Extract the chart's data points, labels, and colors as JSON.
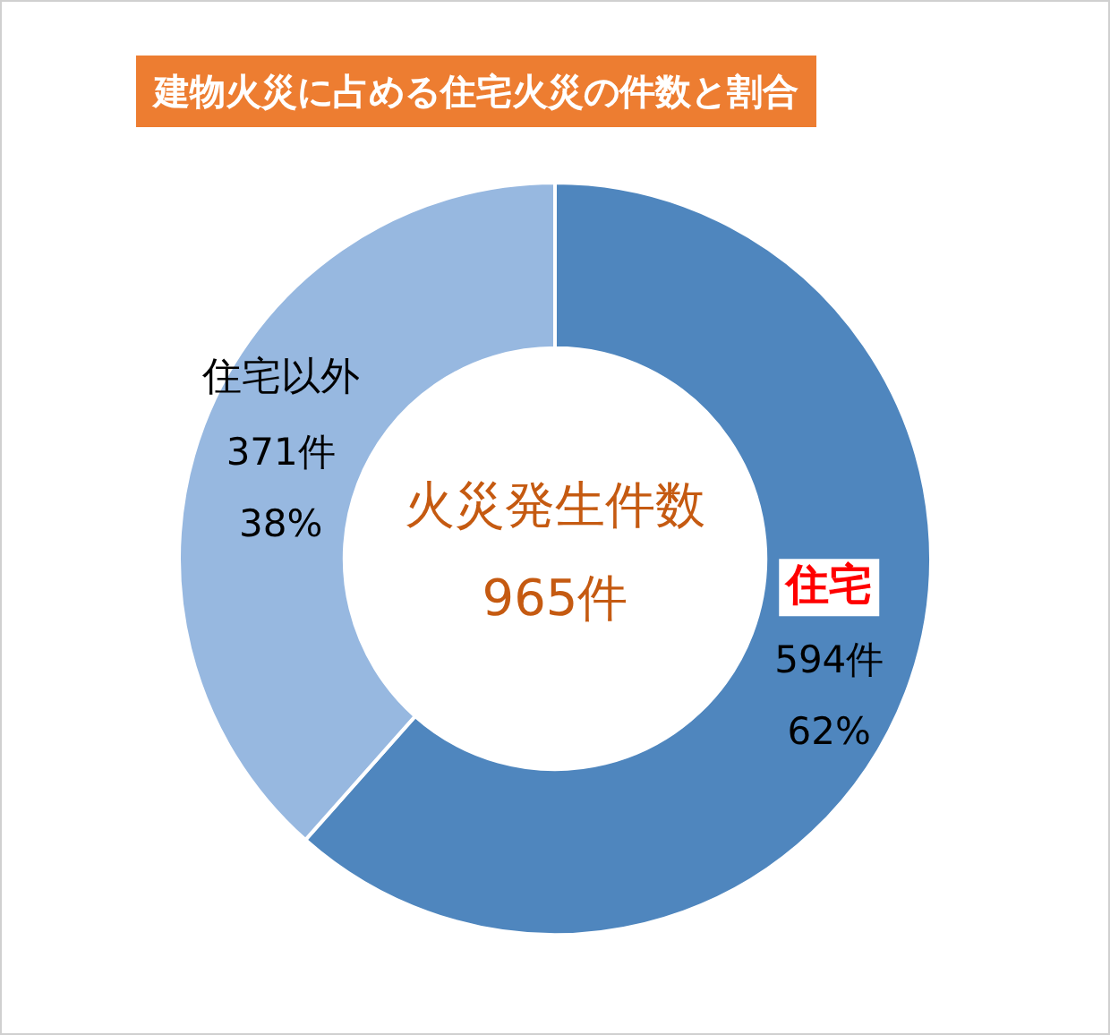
{
  "chart_data": {
    "type": "donut",
    "title": "建物火災に占める住宅火災の件数と割合",
    "categories": [
      "住宅",
      "住宅以外"
    ],
    "values": [
      594,
      371
    ],
    "colors": [
      "#4f86be",
      "#97b8e0"
    ],
    "value_labels": [
      "594件\n62%",
      "371件\n38%"
    ],
    "annotations": [
      "火災発生件数",
      "965件"
    ],
    "legend": false
  }
}
